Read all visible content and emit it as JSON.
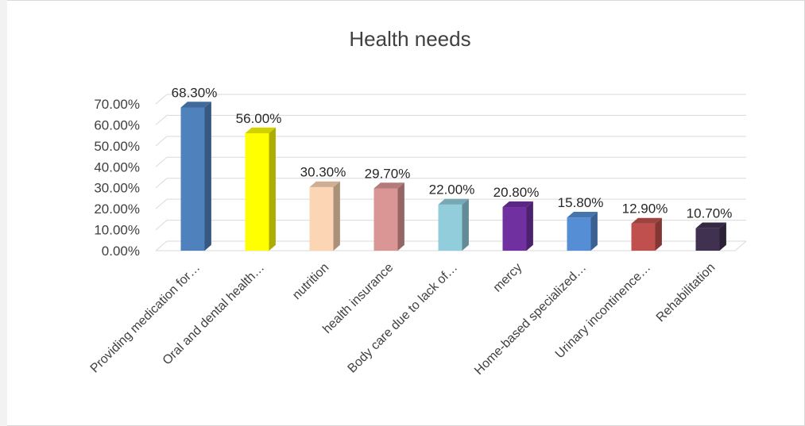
{
  "chart_data": {
    "type": "bar",
    "title": "Health needs",
    "xlabel": "",
    "ylabel": "",
    "ylim": [
      0,
      70
    ],
    "y_ticks": [
      "0.00%",
      "10.00%",
      "20.00%",
      "30.00%",
      "40.00%",
      "50.00%",
      "60.00%",
      "70.00%"
    ],
    "categories": [
      "Providing medication for…",
      "Oral and dental health…",
      "nutrition",
      "health insurance",
      "Body care due to lack of…",
      "mercy",
      "Home-based specialized…",
      "Urinary incontinence…",
      "Rehabilitation"
    ],
    "values": [
      68.3,
      56.0,
      30.3,
      29.7,
      22.0,
      20.8,
      15.8,
      12.9,
      10.7
    ],
    "data_labels": [
      "68.30%",
      "56.00%",
      "30.30%",
      "29.70%",
      "22.00%",
      "20.80%",
      "15.80%",
      "12.90%",
      "10.70%"
    ],
    "colors": [
      "#4f81bd",
      "#ffff00",
      "#fcd5b4",
      "#da9694",
      "#92cddc",
      "#7030a0",
      "#558ed5",
      "#c0504d",
      "#403151"
    ],
    "grid": true,
    "legend": "none",
    "style": "3d-column"
  }
}
